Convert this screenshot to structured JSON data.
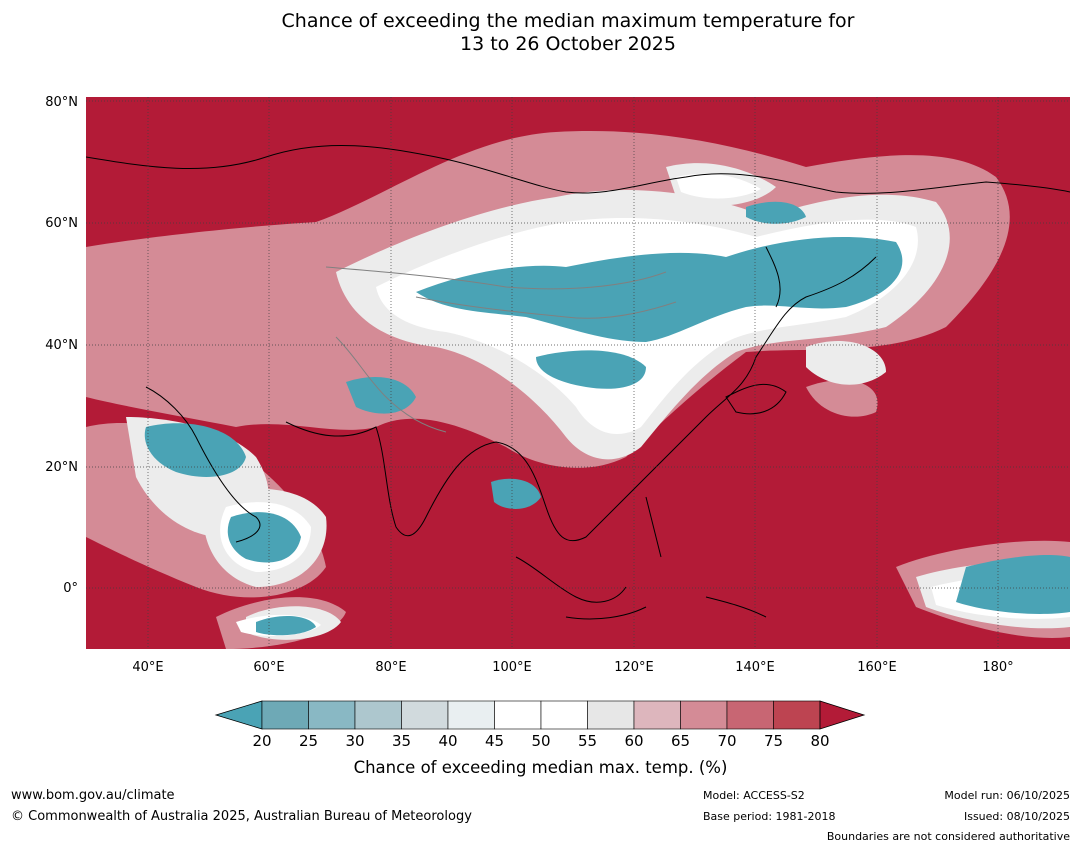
{
  "title": {
    "line1": "Chance of exceeding the median maximum temperature for",
    "line2": "13 to 26 October 2025"
  },
  "map": {
    "lat_labels": [
      "80°N",
      "60°N",
      "40°N",
      "20°N",
      "0°"
    ],
    "lon_labels": [
      "40°E",
      "60°E",
      "80°E",
      "100°E",
      "120°E",
      "140°E",
      "160°E",
      "180°"
    ],
    "lat_range": [
      -10,
      80
    ],
    "lon_range": [
      30,
      191.5
    ]
  },
  "colorbar": {
    "ticks": [
      "20",
      "25",
      "30",
      "35",
      "40",
      "45",
      "50",
      "55",
      "60",
      "65",
      "70",
      "75",
      "80"
    ],
    "colors": [
      "#6ea9b6",
      "#89b8c4",
      "#adc7ce",
      "#d1dadd",
      "#e9eff1",
      "#ffffff",
      "#ffffff",
      "#e7e7e7",
      "#ddb6bd",
      "#d48b96",
      "#c86673",
      "#bd4451"
    ],
    "under_color": "#4aa3b5",
    "over_color": "#b31b37",
    "caption": "Chance of exceeding median max. temp. (%)"
  },
  "footer": {
    "url": "www.bom.gov.au/climate",
    "copyright": "© Commonwealth of Australia 2025, Australian Bureau of Meteorology",
    "model": "Model: ACCESS-S2",
    "base_period": "Base period: 1981-2018",
    "model_run": "Model run: 06/10/2025",
    "issued": "Issued: 08/10/2025",
    "disclaimer": "Boundaries are not considered authoritative"
  }
}
